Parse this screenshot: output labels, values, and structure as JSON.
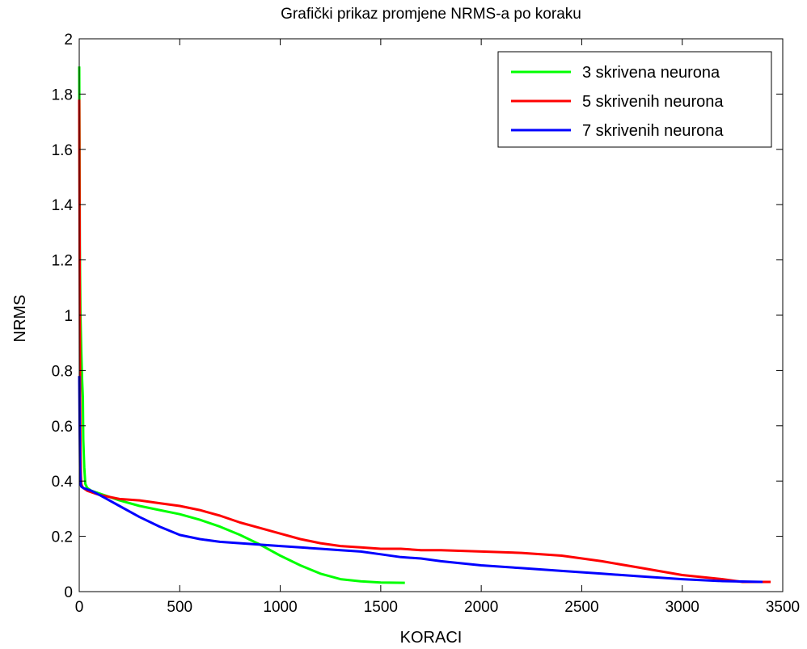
{
  "chart_data": {
    "type": "line",
    "title": "Grafički prikaz promjene NRMS-a po koraku",
    "xlabel": "KORACI",
    "ylabel": "NRMS",
    "xlim": [
      0,
      3500
    ],
    "ylim": [
      0,
      2
    ],
    "xticks": [
      "0",
      "500",
      "1000",
      "1500",
      "2000",
      "2500",
      "3000",
      "3500"
    ],
    "yticks": [
      "0",
      "0.2",
      "0.4",
      "0.6",
      "0.8",
      "1",
      "1.2",
      "1.4",
      "1.6",
      "1.8",
      "2"
    ],
    "grid": false,
    "legend": "top-right",
    "series": [
      {
        "name": "3 skrivena neurona",
        "color": "#00ff00",
        "x": [
          0,
          3,
          6,
          10,
          14,
          18,
          20,
          25,
          30,
          40,
          60,
          100,
          200,
          300,
          400,
          500,
          600,
          700,
          800,
          900,
          1000,
          1100,
          1200,
          1300,
          1400,
          1500,
          1620
        ],
        "y": [
          1.9,
          1.25,
          1.0,
          0.87,
          0.77,
          0.7,
          0.55,
          0.45,
          0.39,
          0.375,
          0.365,
          0.355,
          0.33,
          0.31,
          0.295,
          0.28,
          0.26,
          0.235,
          0.205,
          0.17,
          0.13,
          0.095,
          0.065,
          0.045,
          0.037,
          0.033,
          0.032
        ]
      },
      {
        "name": "5 skrivenih neurona",
        "color": "#ff0000",
        "x": [
          0,
          2,
          4,
          6,
          8,
          10,
          15,
          20,
          40,
          60,
          100,
          200,
          300,
          400,
          500,
          600,
          700,
          800,
          900,
          1000,
          1100,
          1200,
          1300,
          1400,
          1500,
          1600,
          1700,
          1800,
          2000,
          2200,
          2400,
          2600,
          2800,
          3000,
          3200,
          3300,
          3440
        ],
        "y": [
          1.78,
          1.25,
          0.8,
          0.5,
          0.42,
          0.39,
          0.38,
          0.375,
          0.365,
          0.36,
          0.35,
          0.335,
          0.33,
          0.32,
          0.31,
          0.295,
          0.275,
          0.25,
          0.23,
          0.21,
          0.19,
          0.175,
          0.165,
          0.16,
          0.155,
          0.155,
          0.15,
          0.15,
          0.145,
          0.14,
          0.13,
          0.11,
          0.085,
          0.06,
          0.045,
          0.035,
          0.035
        ]
      },
      {
        "name": "7 skrivenih neurona",
        "color": "#0000ff",
        "x": [
          0,
          2,
          4,
          6,
          8,
          10,
          20,
          40,
          60,
          100,
          200,
          300,
          400,
          450,
          500,
          600,
          700,
          800,
          900,
          1000,
          1100,
          1200,
          1300,
          1400,
          1500,
          1600,
          1700,
          1800,
          2000,
          2200,
          2400,
          2600,
          2800,
          3000,
          3200,
          3400
        ],
        "y": [
          0.78,
          0.6,
          0.45,
          0.4,
          0.385,
          0.38,
          0.375,
          0.37,
          0.365,
          0.35,
          0.31,
          0.27,
          0.235,
          0.22,
          0.205,
          0.19,
          0.18,
          0.175,
          0.17,
          0.165,
          0.16,
          0.155,
          0.15,
          0.145,
          0.135,
          0.125,
          0.12,
          0.11,
          0.095,
          0.085,
          0.075,
          0.065,
          0.055,
          0.045,
          0.038,
          0.035
        ]
      }
    ]
  }
}
